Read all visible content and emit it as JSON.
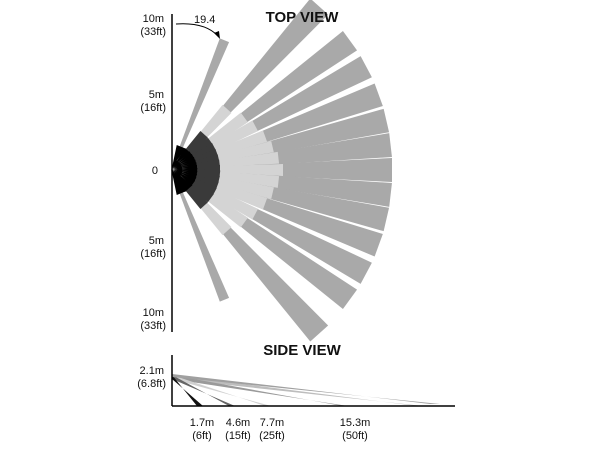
{
  "top_view": {
    "title": "TOP VIEW",
    "angle_label": "19.4",
    "axis_labels": [
      {
        "distance": "10m",
        "feet": "(33ft)"
      },
      {
        "distance": "5m",
        "feet": "(16ft)"
      },
      {
        "distance": "0"
      },
      {
        "distance": "5m",
        "feet": "(16ft)"
      },
      {
        "distance": "10m",
        "feet": "(33ft)"
      }
    ]
  },
  "side_view": {
    "title": "SIDE VIEW",
    "height_label": {
      "distance": "2.1m",
      "feet": "(6.8ft)"
    },
    "range_labels": [
      {
        "distance": "1.7m",
        "feet": "(6ft)"
      },
      {
        "distance": "4.6m",
        "feet": "(15ft)"
      },
      {
        "distance": "7.7m",
        "feet": "(25ft)"
      },
      {
        "distance": "15.3m",
        "feet": "(50ft)"
      }
    ]
  }
}
